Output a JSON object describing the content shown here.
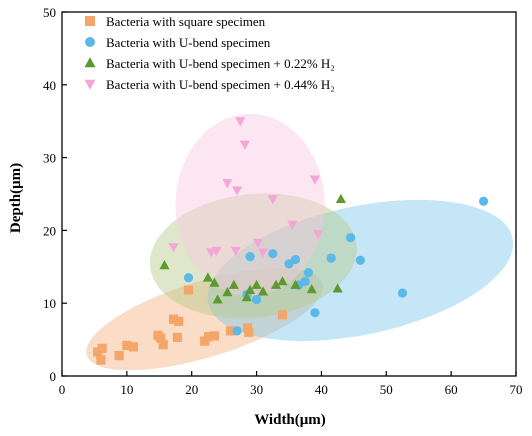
{
  "chart_data": {
    "type": "scatter",
    "xlabel": "Width(μm)",
    "ylabel": "Depth(μm)",
    "xlim": [
      0,
      70
    ],
    "ylim": [
      0,
      50
    ],
    "xticks": [
      0,
      10,
      20,
      30,
      40,
      50,
      60,
      70
    ],
    "yticks": [
      0,
      10,
      20,
      30,
      40,
      50
    ],
    "grid": false,
    "legend_position": "top-left",
    "series": [
      {
        "name": "Bacteria with square specimen",
        "marker": "square",
        "color": "#F4A66A",
        "ellipse_color": "#F4B183",
        "ellipse": {
          "cx": 22,
          "cy": 7.8,
          "rx": 19,
          "ry": 5.2,
          "angle_deg": 17
        },
        "points": [
          [
            5.5,
            3.3
          ],
          [
            6.0,
            2.2
          ],
          [
            6.2,
            3.8
          ],
          [
            8.8,
            2.8
          ],
          [
            10.0,
            4.2
          ],
          [
            11.0,
            4.0
          ],
          [
            14.8,
            5.6
          ],
          [
            15.2,
            5.2
          ],
          [
            15.6,
            4.3
          ],
          [
            17.2,
            7.8
          ],
          [
            17.8,
            5.3
          ],
          [
            18.0,
            7.5
          ],
          [
            19.5,
            11.8
          ],
          [
            22.0,
            4.8
          ],
          [
            22.6,
            5.4
          ],
          [
            23.5,
            5.5
          ],
          [
            26.0,
            6.2
          ],
          [
            28.6,
            6.6
          ],
          [
            28.8,
            6.0
          ],
          [
            34.0,
            8.4
          ]
        ]
      },
      {
        "name": "Bacteria with U-bend specimen",
        "marker": "circle",
        "color": "#5BB8E8",
        "ellipse_color": "#7FC7EE",
        "ellipse": {
          "cx": 46,
          "cy": 14.5,
          "rx": 24,
          "ry": 8.8,
          "angle_deg": 12
        },
        "points": [
          [
            19.5,
            13.5
          ],
          [
            27.0,
            6.2
          ],
          [
            28.5,
            11.2
          ],
          [
            29.0,
            16.4
          ],
          [
            30.0,
            10.5
          ],
          [
            32.5,
            16.8
          ],
          [
            35.0,
            15.4
          ],
          [
            36.0,
            16.0
          ],
          [
            36.5,
            12.5
          ],
          [
            37.5,
            13.0
          ],
          [
            38.0,
            14.2
          ],
          [
            39.0,
            8.7
          ],
          [
            41.5,
            16.2
          ],
          [
            44.5,
            19.0
          ],
          [
            46.0,
            15.9
          ],
          [
            52.5,
            11.4
          ],
          [
            65.0,
            24.0
          ]
        ]
      },
      {
        "name": "Bacteria with U-bend specimen + 0.22% H₂",
        "marker": "triangle-up",
        "color": "#5A9A2E",
        "ellipse_color": "#B5C987",
        "ellipse": {
          "cx": 29.5,
          "cy": 16.5,
          "rx": 16,
          "ry": 8.5,
          "angle_deg": 6
        },
        "points": [
          [
            15.8,
            15.2
          ],
          [
            22.5,
            13.5
          ],
          [
            23.5,
            12.8
          ],
          [
            24.0,
            10.5
          ],
          [
            25.5,
            11.5
          ],
          [
            26.5,
            12.5
          ],
          [
            28.5,
            10.8
          ],
          [
            29.0,
            11.8
          ],
          [
            30.0,
            12.5
          ],
          [
            31.0,
            11.6
          ],
          [
            33.0,
            12.5
          ],
          [
            34.0,
            13.0
          ],
          [
            36.0,
            12.5
          ],
          [
            38.5,
            11.9
          ],
          [
            42.5,
            12.0
          ],
          [
            43.0,
            24.3
          ]
        ]
      },
      {
        "name": "Bacteria with U-bend specimen + 0.44% H₂",
        "marker": "triangle-down",
        "color": "#F4A6D7",
        "ellipse_color": "#F8C8E3",
        "ellipse": {
          "cx": 29,
          "cy": 23.5,
          "rx": 11.5,
          "ry": 12.5,
          "angle_deg": 0
        },
        "points": [
          [
            17.2,
            17.7
          ],
          [
            23.0,
            17.0
          ],
          [
            23.8,
            17.2
          ],
          [
            25.5,
            26.5
          ],
          [
            26.8,
            17.2
          ],
          [
            27.0,
            25.5
          ],
          [
            27.5,
            35.0
          ],
          [
            28.2,
            31.8
          ],
          [
            30.2,
            18.3
          ],
          [
            31.0,
            17.0
          ],
          [
            32.5,
            24.3
          ],
          [
            35.5,
            20.8
          ],
          [
            39.0,
            27.0
          ],
          [
            39.5,
            19.5
          ]
        ]
      }
    ]
  }
}
